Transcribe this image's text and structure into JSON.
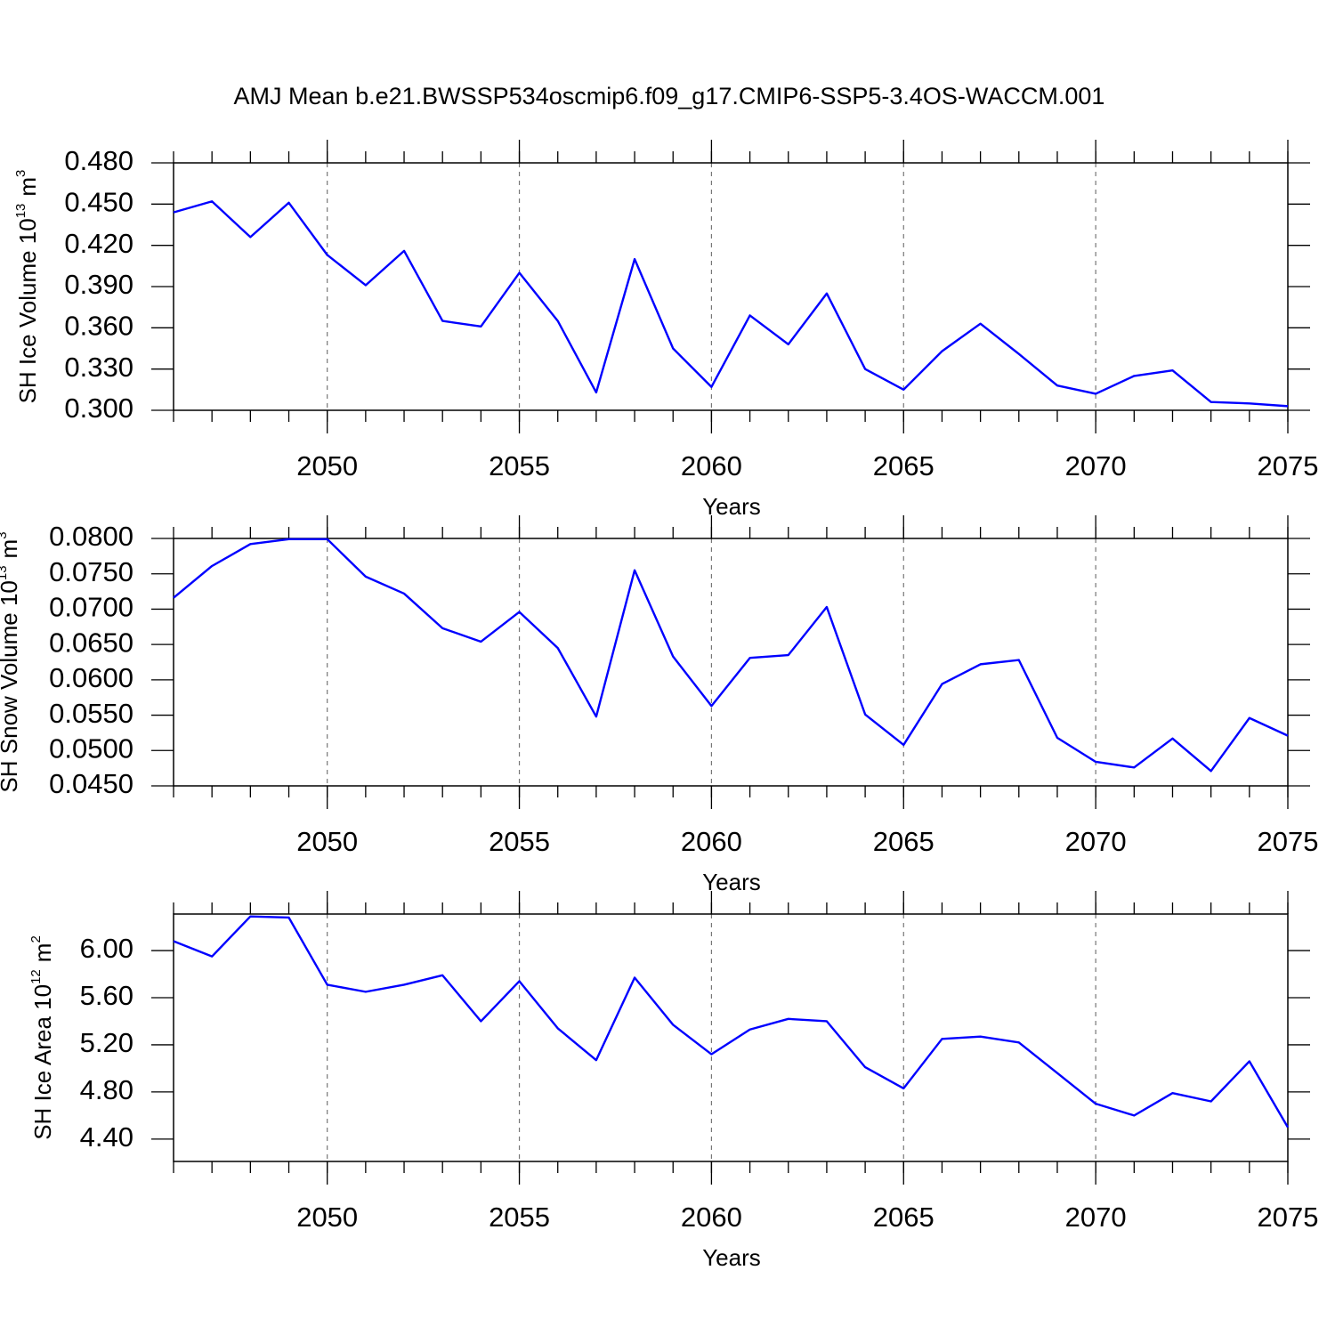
{
  "title": "AMJ Mean b.e21.BWSSP534oscmip6.f09_g17.CMIP6-SSP5-3.4OS-WACCM.001",
  "chart_data": [
    {
      "type": "line",
      "ylabel": {
        "text": "SH Ice Volume 10",
        "exponent": "13",
        "unit": "m",
        "unit_exponent": "3"
      },
      "xlabel": "Years",
      "x": [
        2046,
        2047,
        2048,
        2049,
        2050,
        2051,
        2052,
        2053,
        2054,
        2055,
        2056,
        2057,
        2058,
        2059,
        2060,
        2061,
        2062,
        2063,
        2064,
        2065,
        2066,
        2067,
        2068,
        2069,
        2070,
        2071,
        2072,
        2073,
        2074,
        2075
      ],
      "series": [
        {
          "color": "#0000ff",
          "values": [
            0.444,
            0.452,
            0.426,
            0.451,
            0.413,
            0.391,
            0.416,
            0.365,
            0.361,
            0.4,
            0.365,
            0.313,
            0.41,
            0.345,
            0.317,
            0.369,
            0.348,
            0.385,
            0.33,
            0.315,
            0.343,
            0.363,
            0.341,
            0.318,
            0.312,
            0.325,
            0.329,
            0.306,
            0.305,
            0.303
          ]
        }
      ],
      "xlim": [
        2046,
        2075
      ],
      "xticks": [
        2050,
        2055,
        2060,
        2065,
        2070,
        2075
      ],
      "ylim": [
        0.3,
        0.48
      ],
      "yticks": [
        {
          "value": 0.3,
          "label": "0.300"
        },
        {
          "value": 0.33,
          "label": "0.330"
        },
        {
          "value": 0.36,
          "label": "0.360"
        },
        {
          "value": 0.39,
          "label": "0.390"
        },
        {
          "value": 0.42,
          "label": "0.420"
        },
        {
          "value": 0.45,
          "label": "0.450"
        },
        {
          "value": 0.48,
          "label": "0.480"
        }
      ],
      "grid": "x"
    },
    {
      "type": "line",
      "ylabel": {
        "text": "SH Snow Volume 10",
        "exponent": "13",
        "unit": "m",
        "unit_exponent": "3"
      },
      "xlabel": "Years",
      "x": [
        2046,
        2047,
        2048,
        2049,
        2050,
        2051,
        2052,
        2053,
        2054,
        2055,
        2056,
        2057,
        2058,
        2059,
        2060,
        2061,
        2062,
        2063,
        2064,
        2065,
        2066,
        2067,
        2068,
        2069,
        2070,
        2071,
        2072,
        2073,
        2074,
        2075
      ],
      "series": [
        {
          "color": "#0000ff",
          "values": [
            0.0716,
            0.0761,
            0.0792,
            0.0799,
            0.0799,
            0.0746,
            0.0722,
            0.0673,
            0.0654,
            0.0696,
            0.0645,
            0.0548,
            0.0755,
            0.0633,
            0.0563,
            0.0631,
            0.0635,
            0.0703,
            0.0551,
            0.0508,
            0.0594,
            0.0622,
            0.0628,
            0.0518,
            0.0484,
            0.0476,
            0.0517,
            0.0471,
            0.0546,
            0.0521
          ]
        }
      ],
      "xlim": [
        2046,
        2075
      ],
      "xticks": [
        2050,
        2055,
        2060,
        2065,
        2070,
        2075
      ],
      "ylim": [
        0.045,
        0.08
      ],
      "yticks": [
        {
          "value": 0.045,
          "label": "0.0450"
        },
        {
          "value": 0.05,
          "label": "0.0500"
        },
        {
          "value": 0.055,
          "label": "0.0550"
        },
        {
          "value": 0.06,
          "label": "0.0600"
        },
        {
          "value": 0.065,
          "label": "0.0650"
        },
        {
          "value": 0.07,
          "label": "0.0700"
        },
        {
          "value": 0.075,
          "label": "0.0750"
        },
        {
          "value": 0.08,
          "label": "0.0800"
        }
      ],
      "grid": "x"
    },
    {
      "type": "line",
      "ylabel": {
        "text": "SH Ice Area 10",
        "exponent": "12",
        "unit": "m",
        "unit_exponent": "2"
      },
      "xlabel": "Years",
      "x": [
        2046,
        2047,
        2048,
        2049,
        2050,
        2051,
        2052,
        2053,
        2054,
        2055,
        2056,
        2057,
        2058,
        2059,
        2060,
        2061,
        2062,
        2063,
        2064,
        2065,
        2066,
        2067,
        2068,
        2069,
        2070,
        2071,
        2072,
        2073,
        2074,
        2075
      ],
      "series": [
        {
          "color": "#0000ff",
          "values": [
            6.08,
            5.95,
            6.29,
            6.28,
            5.71,
            5.65,
            5.71,
            5.79,
            5.4,
            5.74,
            5.34,
            5.07,
            5.77,
            5.37,
            5.12,
            5.33,
            5.42,
            5.4,
            5.01,
            4.83,
            5.25,
            5.27,
            5.22,
            4.96,
            4.7,
            4.6,
            4.79,
            4.72,
            5.06,
            4.5
          ]
        }
      ],
      "xlim": [
        2046,
        2075
      ],
      "xticks": [
        2050,
        2055,
        2060,
        2065,
        2070,
        2075
      ],
      "ylim": [
        4.21,
        6.31
      ],
      "yticks": [
        {
          "value": 4.4,
          "label": "4.40"
        },
        {
          "value": 4.8,
          "label": "4.80"
        },
        {
          "value": 5.2,
          "label": "5.20"
        },
        {
          "value": 5.6,
          "label": "5.60"
        },
        {
          "value": 6,
          "label": "6.00"
        }
      ],
      "grid": "x"
    }
  ]
}
